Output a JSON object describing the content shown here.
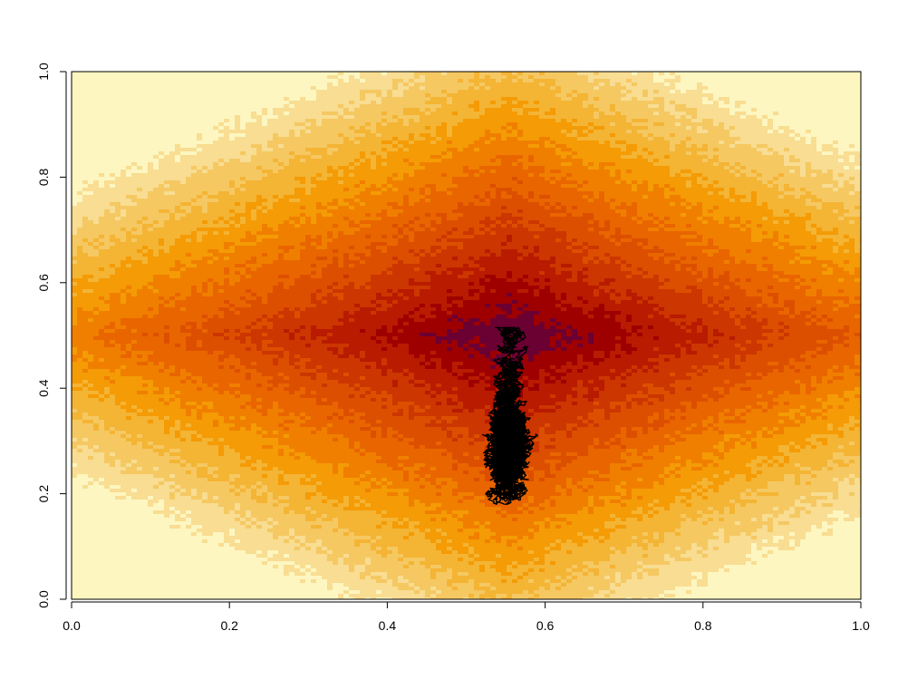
{
  "chart_data": {
    "type": "heatmap",
    "title": "",
    "xlabel": "",
    "ylabel": "",
    "xlim": [
      0,
      1
    ],
    "ylim": [
      0,
      1
    ],
    "grid": false,
    "xticks": [
      "0.0",
      "0.2",
      "0.4",
      "0.6",
      "0.8",
      "1.0"
    ],
    "yticks": [
      "0.0",
      "0.2",
      "0.4",
      "0.6",
      "0.8",
      "1.0"
    ],
    "heatmap": {
      "description_function": "diamond-shaped field, peak at center",
      "center": [
        0.555,
        0.5
      ],
      "levels": 12,
      "colormap": [
        "#6b0032",
        "#9e0000",
        "#b81b00",
        "#cc3600",
        "#dd4f00",
        "#e96500",
        "#f07f00",
        "#f49b05",
        "#f4b434",
        "#f5c862",
        "#f8dd92",
        "#fdf6c0"
      ]
    },
    "trajectory": {
      "color": "#000000",
      "anchor": [
        0.555,
        0.28
      ],
      "x_range": [
        0.46,
        0.675
      ],
      "y_range": [
        0.18,
        0.515
      ]
    }
  }
}
